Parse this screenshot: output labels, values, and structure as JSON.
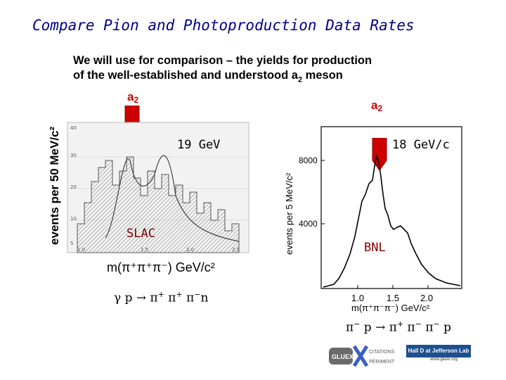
{
  "title": "Compare Pion and Photoproduction Data Rates",
  "intro": {
    "line1": "We will use for comparison – the yields for production",
    "line2_prefix": "of the well-established and understood a",
    "line2_sub": "2",
    "line2_suffix": " meson"
  },
  "left_panel": {
    "marker": {
      "base": "a",
      "sub": "2"
    },
    "energy": "19 GeV",
    "label": "SLAC",
    "ylabel": "events per 50 MeV/c²",
    "y_ticks": [
      "40",
      "30",
      "20",
      "10",
      "5"
    ],
    "x_ticks": [
      "1.0",
      "1.5",
      "2.0",
      "2.5"
    ],
    "xlabel": "m(π⁺π⁺π⁻)   GeV/c²",
    "reaction_main": "γ p → π",
    "reaction_sup1": "+",
    "reaction_mid": " π",
    "reaction_sup2": "+",
    "reaction_mid2": " π",
    "reaction_sup3": "−",
    "reaction_end": "n"
  },
  "right_panel": {
    "marker": {
      "base": "a",
      "sub": "2"
    },
    "energy": "18 GeV/c",
    "label": "BNL",
    "ylabel": "events per 5 MeV/c²",
    "y_ticks": [
      "8000",
      "4000"
    ],
    "x_ticks": [
      "1.0",
      "1.5",
      "2.0"
    ],
    "xlabel": "m(π⁺π⁻π⁻)  GeV/c²",
    "reaction_main": "π",
    "reaction_sup1": "−",
    "reaction_mid": " p → π",
    "reaction_sup2": "+",
    "reaction_mid2": " π",
    "reaction_sup3": "−",
    "reaction_mid3": " π",
    "reaction_sup4": "−",
    "reaction_end": " p"
  },
  "logos": {
    "gluex_text": "GLUEX",
    "gluex_sub1": "CITATIONS",
    "gluex_sub2": "PERIMENT",
    "hall_d": "Hall D at Jefferson Lab",
    "hall_d_url": "www.gluex.org"
  },
  "colors": {
    "title": "#000080",
    "marker": "#cc0000",
    "label": "#800000",
    "arrow": "#cc0000"
  }
}
